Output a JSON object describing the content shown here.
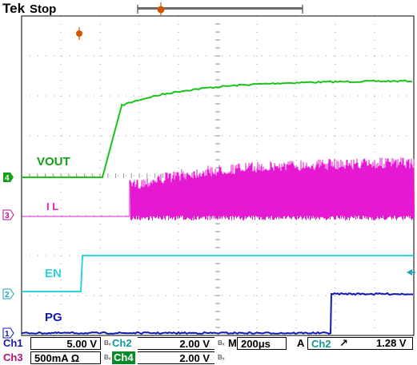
{
  "header": {
    "brand": "Tek",
    "state": "Stop"
  },
  "channels": [
    {
      "id": "ch4",
      "marker": "4",
      "label": "VOUT",
      "color": "#19c419",
      "marker_color": "#14a014"
    },
    {
      "id": "ch3",
      "marker": "3",
      "label": "I L",
      "color": "#e619d2",
      "marker_color": "#b8128f"
    },
    {
      "id": "ch2",
      "marker": "2",
      "label": "EN",
      "color": "#2ad4e0",
      "marker_color": "#1aa9b6"
    },
    {
      "id": "ch1",
      "marker": "1",
      "label": "PG",
      "color": "#1019b0",
      "marker_color": "#1019b0"
    }
  ],
  "status": {
    "ch1": {
      "name": "Ch1",
      "value": "5.00 V"
    },
    "ch2": {
      "name": "Ch2",
      "value": "2.00 V"
    },
    "ch3": {
      "name": "Ch3",
      "value": "500mA Ω"
    },
    "ch4": {
      "name": "Ch4",
      "value": "2.00 V"
    },
    "bw_mark": "Bₓ",
    "timebase_prefix": "M",
    "timebase": "200μs",
    "trigger_prefix": "A",
    "trigger_source": "Ch2",
    "trigger_slope": "↗",
    "trigger_level": "1.28 V"
  }
}
